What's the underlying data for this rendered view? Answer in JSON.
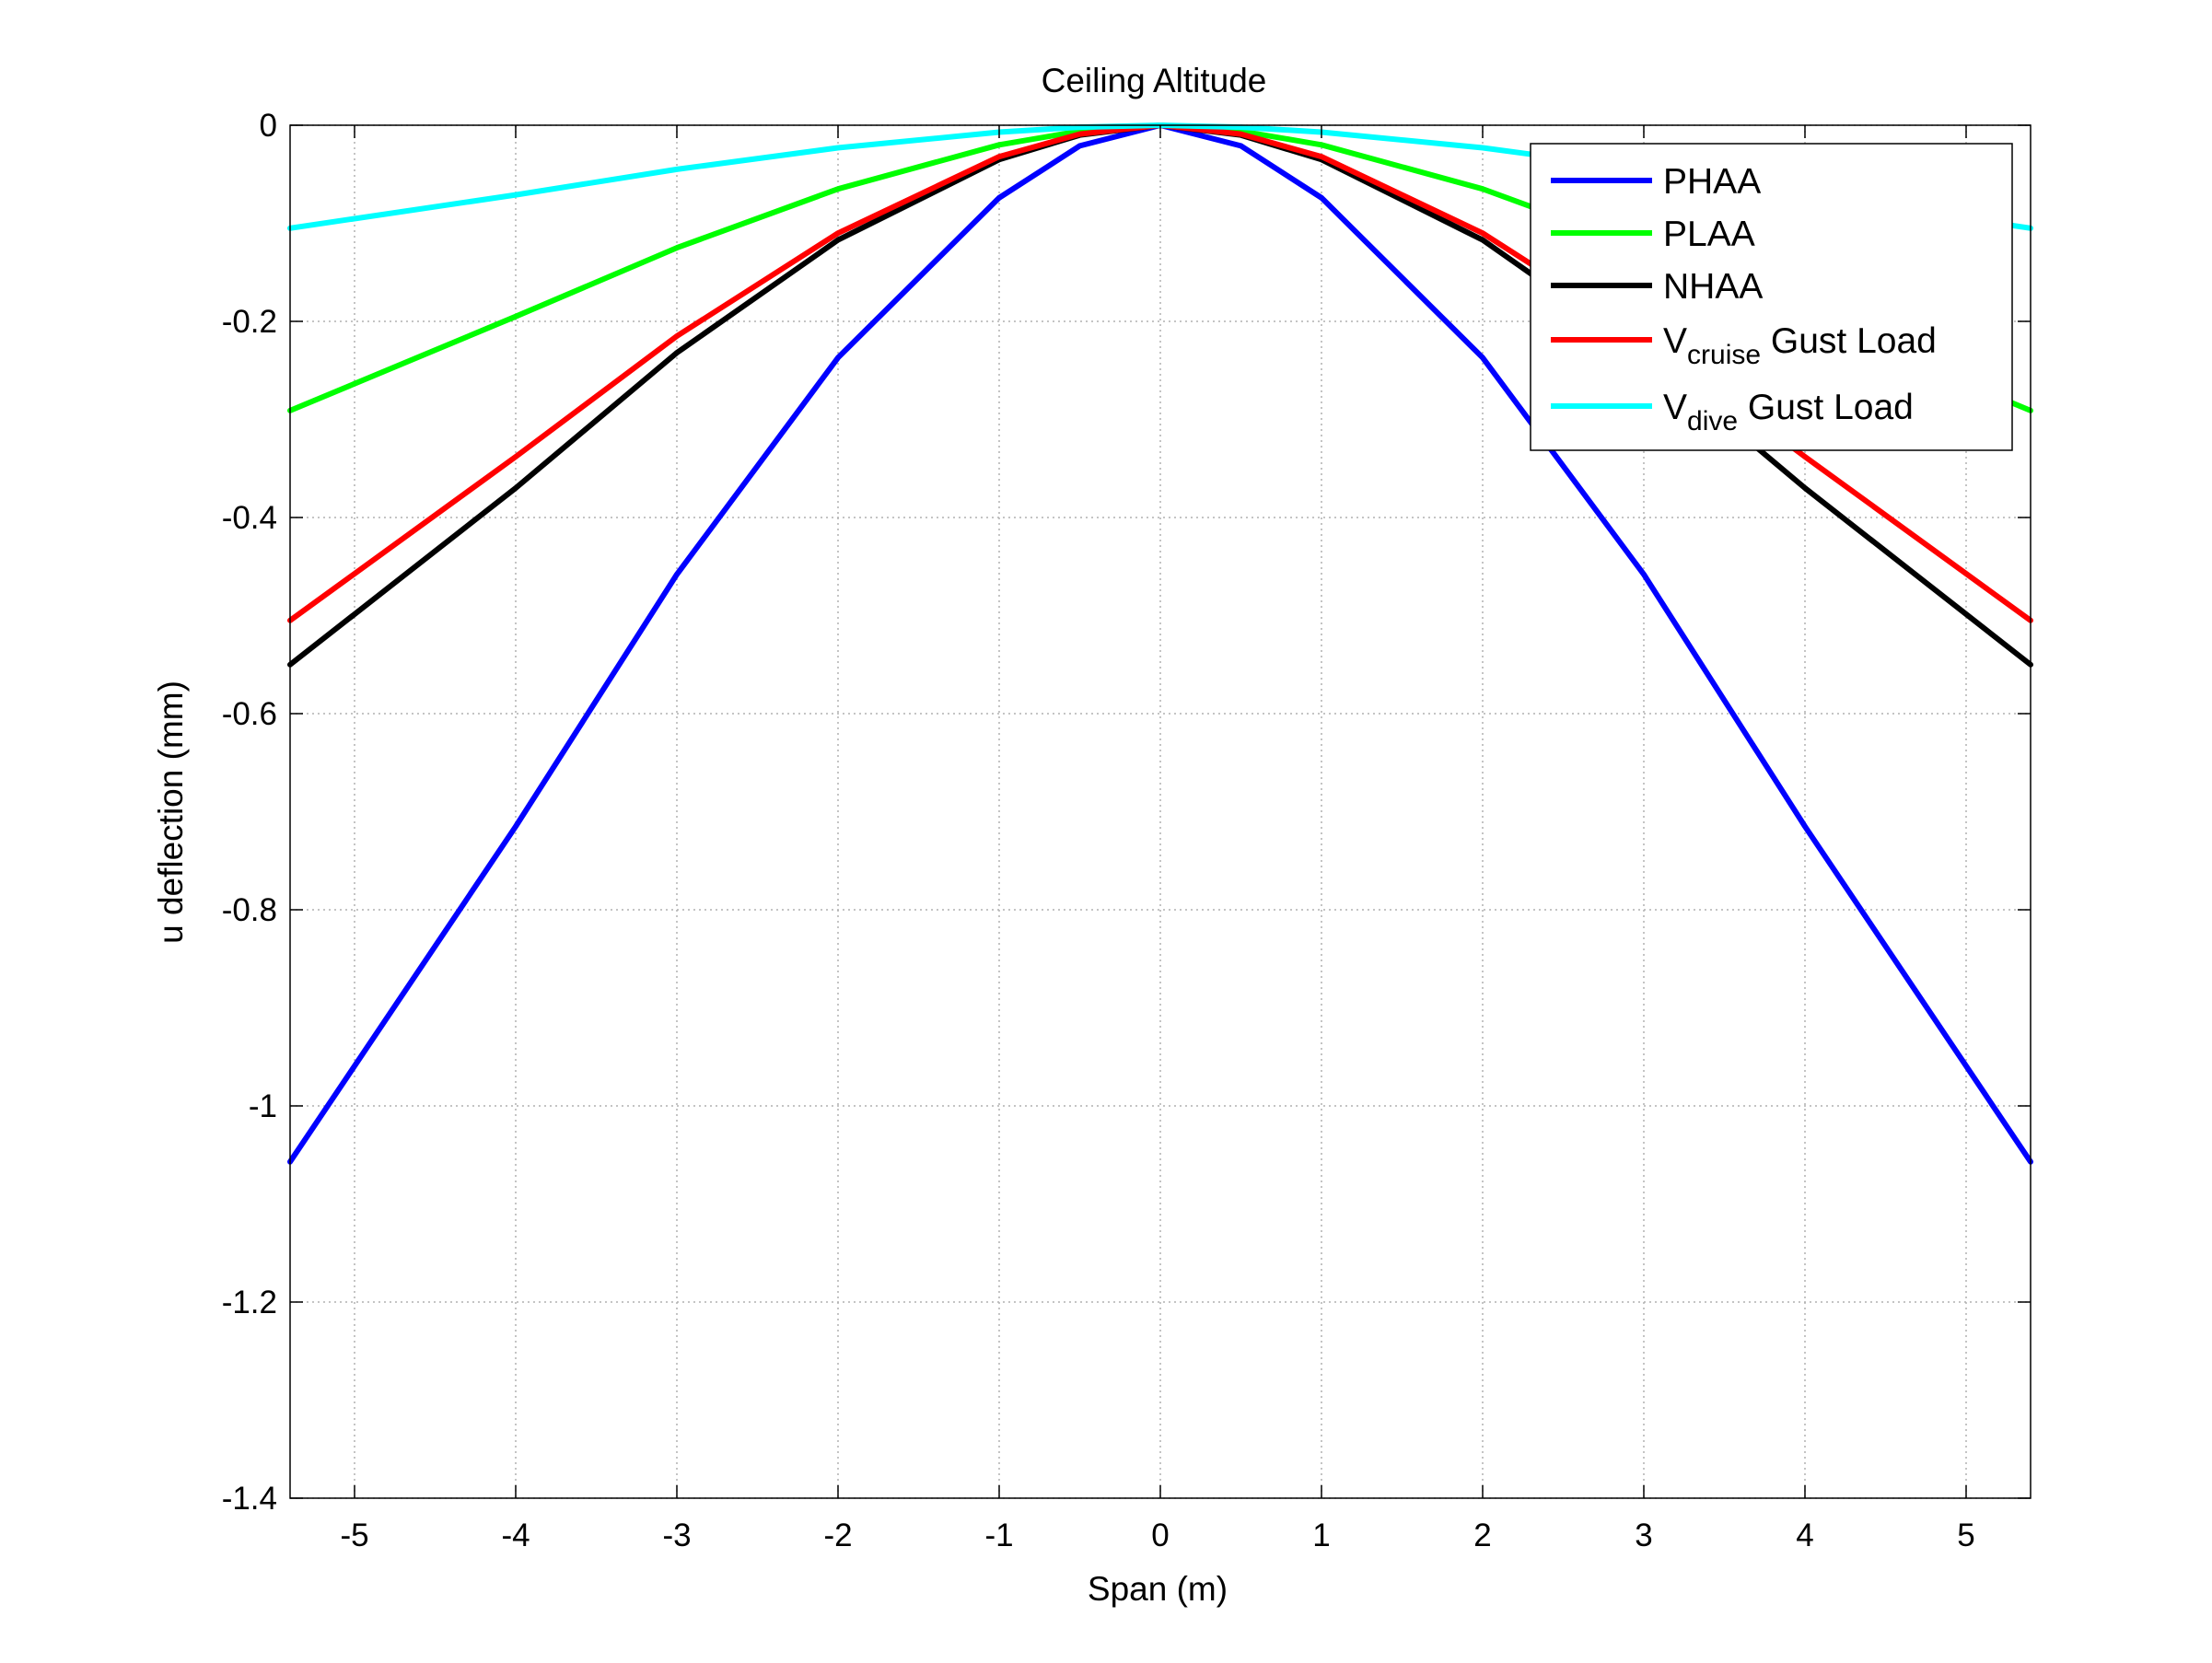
{
  "chart_data": {
    "type": "line",
    "title": "Ceiling Altitude",
    "xlabel": "Span (m)",
    "ylabel": "u deflection (mm)",
    "xlim": [
      -5.4,
      5.4
    ],
    "ylim": [
      -1.4,
      0
    ],
    "xticks": [
      -5,
      -4,
      -3,
      -2,
      -1,
      0,
      1,
      2,
      3,
      4,
      5
    ],
    "xtick_labels": [
      "-5",
      "-4",
      "-3",
      "-2",
      "-1",
      "0",
      "1",
      "2",
      "3",
      "4",
      "5"
    ],
    "yticks": [
      0,
      -0.2,
      -0.4,
      -0.6,
      -0.8,
      -1,
      -1.2,
      -1.4
    ],
    "ytick_labels": [
      "0",
      "-0.2",
      "-0.4",
      "-0.6",
      "-0.8",
      "-1",
      "-1.2",
      "-1.4"
    ],
    "grid": true,
    "legend_position": "top-right",
    "series": [
      {
        "name": "PHAA",
        "legend_main": "PHAA",
        "legend_sub": "",
        "legend_tail": "",
        "color": "#0000ff",
        "x": [
          -5.4,
          -4,
          -3,
          -2,
          -1,
          -0.5,
          0,
          0.5,
          1,
          2,
          3,
          4,
          5.4
        ],
        "y": [
          -1.057,
          -0.715,
          -0.458,
          -0.237,
          -0.074,
          -0.021,
          0,
          -0.021,
          -0.074,
          -0.237,
          -0.458,
          -0.715,
          -1.057
        ]
      },
      {
        "name": "PLAA",
        "legend_main": "PLAA",
        "legend_sub": "",
        "legend_tail": "",
        "color": "#00ff00",
        "x": [
          -5.4,
          -4,
          -3,
          -2,
          -1,
          -0.5,
          0,
          0.5,
          1,
          2,
          3,
          4,
          5.4
        ],
        "y": [
          -0.291,
          -0.195,
          -0.125,
          -0.065,
          -0.02,
          -0.006,
          0,
          -0.006,
          -0.02,
          -0.065,
          -0.125,
          -0.195,
          -0.291
        ]
      },
      {
        "name": "NHAA",
        "legend_main": "NHAA",
        "legend_sub": "",
        "legend_tail": "",
        "color": "#000000",
        "x": [
          -5.4,
          -4,
          -3,
          -2,
          -1,
          -0.5,
          0,
          0.5,
          1,
          2,
          3,
          4,
          5.4
        ],
        "y": [
          -0.55,
          -0.37,
          -0.232,
          -0.117,
          -0.035,
          -0.01,
          0,
          -0.01,
          -0.035,
          -0.117,
          -0.232,
          -0.37,
          -0.55
        ]
      },
      {
        "name": "Vcruise Gust Load",
        "legend_main": "V",
        "legend_sub": "cruise",
        "legend_tail": " Gust Load",
        "color": "#ff0000",
        "x": [
          -5.4,
          -4,
          -3,
          -2,
          -1,
          -0.5,
          0,
          0.5,
          1,
          2,
          3,
          4,
          5.4
        ],
        "y": [
          -0.505,
          -0.338,
          -0.215,
          -0.11,
          -0.032,
          -0.009,
          0,
          -0.009,
          -0.032,
          -0.11,
          -0.215,
          -0.338,
          -0.505
        ]
      },
      {
        "name": "Vdive Gust Load",
        "legend_main": "V",
        "legend_sub": "dive",
        "legend_tail": " Gust Load",
        "color": "#00ffff",
        "x": [
          -5.4,
          -4,
          -3,
          -2,
          -1,
          -0.5,
          0,
          0.5,
          1,
          2,
          3,
          4,
          5.4
        ],
        "y": [
          -0.105,
          -0.071,
          -0.045,
          -0.023,
          -0.007,
          -0.002,
          0,
          -0.002,
          -0.007,
          -0.023,
          -0.045,
          -0.071,
          -0.105
        ]
      }
    ]
  }
}
